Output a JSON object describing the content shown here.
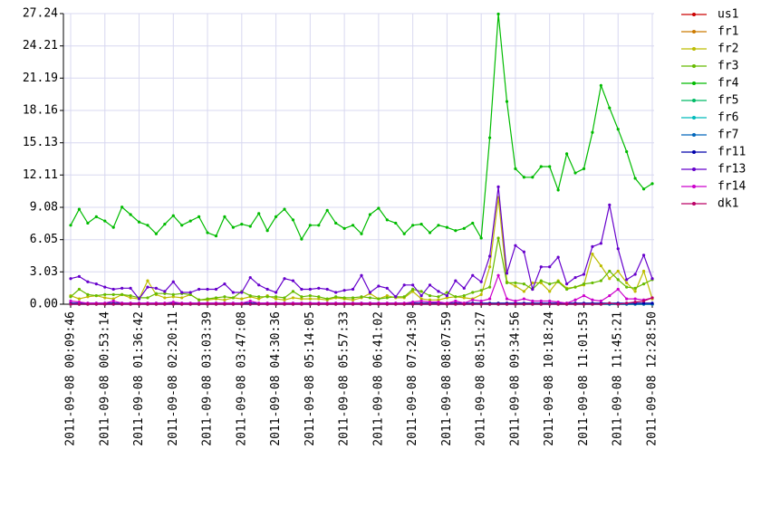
{
  "chart_data": {
    "type": "line",
    "categories": [
      "2011-09-08 00:09:46",
      null,
      null,
      null,
      "2011-09-08 00:53:14",
      null,
      null,
      null,
      "2011-09-08 01:36:42",
      null,
      null,
      null,
      "2011-09-08 02:20:11",
      null,
      null,
      null,
      "2011-09-08 03:03:39",
      null,
      null,
      null,
      "2011-09-08 03:47:08",
      null,
      null,
      null,
      "2011-09-08 04:30:36",
      null,
      null,
      null,
      "2011-09-08 05:14:05",
      null,
      null,
      null,
      "2011-09-08 05:57:33",
      null,
      null,
      null,
      "2011-09-08 06:41:02",
      null,
      null,
      null,
      "2011-09-08 07:24:30",
      null,
      null,
      null,
      "2011-09-08 08:07:59",
      null,
      null,
      null,
      "2011-09-08 08:51:27",
      null,
      null,
      null,
      "2011-09-08 09:34:56",
      null,
      null,
      null,
      "2011-09-08 10:18:24",
      null,
      null,
      null,
      "2011-09-08 11:01:53",
      null,
      null,
      null,
      "2011-09-08 11:45:21",
      null,
      null,
      null,
      "2011-09-08 12:28:50"
    ],
    "ylim": [
      0,
      27.24
    ],
    "yticks": [
      {
        "value": 0,
        "label": "0.00"
      },
      3.03,
      6.05,
      9.08,
      12.11,
      15.13,
      18.16,
      21.19,
      24.21,
      27.24
    ],
    "grid": true,
    "legend": "right",
    "series": [
      {
        "name": "us1",
        "color": "#cc0000",
        "values": [
          0,
          0,
          0,
          0,
          0,
          0,
          0,
          0,
          0,
          0,
          0,
          0,
          0,
          0,
          0,
          0,
          0,
          0,
          0,
          0,
          0,
          0,
          0,
          0,
          0,
          0,
          0,
          0,
          0,
          0,
          0,
          0,
          0,
          0,
          0,
          0,
          0,
          0,
          0,
          0,
          0,
          0,
          0,
          0,
          0,
          0,
          0,
          0,
          0,
          0,
          0,
          0,
          0,
          0,
          0,
          0,
          0,
          0,
          0,
          0,
          0,
          0,
          0,
          0,
          0,
          0,
          0,
          0,
          0
        ]
      },
      {
        "name": "fr1",
        "color": "#cc7a00",
        "values": [
          0,
          0,
          0,
          0,
          0,
          0,
          0,
          0,
          0,
          0,
          0,
          0,
          0,
          0,
          0,
          0,
          0,
          0,
          0,
          0,
          0,
          0,
          0,
          0,
          0,
          0,
          0,
          0,
          0,
          0,
          0,
          0,
          0,
          0,
          0,
          0,
          0,
          0,
          0,
          0,
          0,
          0,
          0,
          0,
          0,
          0,
          0,
          0,
          0,
          0,
          0,
          0,
          0,
          0,
          0,
          0,
          0,
          0,
          0,
          0,
          0,
          0,
          0,
          0,
          0,
          0,
          0,
          0,
          0
        ]
      },
      {
        "name": "fr2",
        "color": "#bdbd00",
        "values": [
          0.8,
          0.5,
          0.7,
          0.8,
          0.6,
          0.5,
          0.9,
          0.6,
          0.5,
          2.2,
          0.9,
          0.6,
          0.7,
          0.6,
          0.9,
          0.4,
          0.4,
          0.5,
          0.4,
          0.6,
          0.5,
          0.7,
          0.5,
          0.8,
          0.5,
          0.4,
          0.6,
          0.5,
          0.5,
          0.5,
          0.4,
          0.6,
          0.5,
          0.4,
          0.6,
          1.0,
          0.5,
          0.8,
          0.6,
          0.6,
          1.2,
          0.5,
          0.4,
          0.4,
          0.6,
          0.7,
          0.6,
          0.5,
          0.9,
          3.5,
          10.0,
          2.1,
          1.7,
          1.2,
          2.0,
          2.0,
          1.2,
          2.2,
          1.5,
          1.6,
          1.8,
          4.7,
          3.6,
          2.4,
          3.1,
          2.0,
          1.2,
          3.1,
          0.5
        ]
      },
      {
        "name": "fr3",
        "color": "#66bb00",
        "values": [
          0.7,
          1.4,
          0.9,
          0.8,
          0.9,
          0.9,
          0.9,
          0.8,
          0.6,
          0.6,
          1.0,
          1.0,
          0.9,
          1.0,
          0.9,
          0.4,
          0.5,
          0.6,
          0.7,
          0.6,
          1.2,
          0.8,
          0.7,
          0.7,
          0.7,
          0.6,
          1.2,
          0.7,
          0.8,
          0.7,
          0.5,
          0.7,
          0.6,
          0.6,
          0.7,
          0.6,
          0.5,
          0.6,
          0.7,
          0.7,
          1.4,
          1.2,
          0.8,
          0.7,
          1.1,
          0.7,
          0.8,
          1.1,
          1.3,
          1.6,
          6.2,
          2.0,
          2.0,
          1.9,
          1.4,
          2.2,
          1.9,
          2.1,
          1.4,
          1.6,
          1.9,
          2.0,
          2.2,
          3.1,
          2.3,
          1.6,
          1.5,
          1.9,
          2.3
        ]
      },
      {
        "name": "fr4",
        "color": "#00bb00",
        "values": [
          7.4,
          8.9,
          7.6,
          8.2,
          7.8,
          7.2,
          9.1,
          8.4,
          7.7,
          7.4,
          6.6,
          7.5,
          8.3,
          7.4,
          7.8,
          8.2,
          6.7,
          6.4,
          8.2,
          7.2,
          7.5,
          7.3,
          8.5,
          6.9,
          8.2,
          8.9,
          7.9,
          6.1,
          7.4,
          7.4,
          8.8,
          7.6,
          7.1,
          7.4,
          6.6,
          8.4,
          9.0,
          7.9,
          7.6,
          6.6,
          7.4,
          7.5,
          6.7,
          7.4,
          7.2,
          6.9,
          7.1,
          7.6,
          6.2,
          15.6,
          27.2,
          19.0,
          12.7,
          11.9,
          11.9,
          12.9,
          12.9,
          10.7,
          14.1,
          12.3,
          12.7,
          16.1,
          20.5,
          18.4,
          16.4,
          14.3,
          11.8,
          10.8,
          11.3
        ]
      },
      {
        "name": "fr5",
        "color": "#00bb66",
        "values": [
          0,
          0,
          0,
          0,
          0,
          0,
          0,
          0,
          0,
          0,
          0,
          0,
          0,
          0,
          0,
          0,
          0,
          0,
          0,
          0,
          0,
          0,
          0,
          0,
          0,
          0,
          0,
          0,
          0,
          0,
          0,
          0,
          0,
          0,
          0,
          0,
          0,
          0,
          0,
          0,
          0,
          0,
          0,
          0,
          0,
          0,
          0,
          0,
          0,
          0,
          0,
          0,
          0,
          0,
          0,
          0,
          0,
          0,
          0,
          0,
          0,
          0,
          0,
          0,
          0,
          0,
          0,
          0,
          0
        ]
      },
      {
        "name": "fr6",
        "color": "#00bbbb",
        "values": [
          0,
          0,
          0,
          0,
          0,
          0,
          0,
          0,
          0,
          0,
          0,
          0,
          0,
          0,
          0,
          0,
          0,
          0,
          0,
          0,
          0,
          0,
          0,
          0,
          0,
          0,
          0,
          0,
          0,
          0,
          0,
          0,
          0,
          0,
          0,
          0,
          0,
          0,
          0,
          0,
          0,
          0,
          0,
          0,
          0,
          0,
          0,
          0,
          0,
          0,
          0,
          0,
          0,
          0,
          0,
          0,
          0,
          0,
          0,
          0,
          0,
          0,
          0,
          0,
          0,
          0,
          0,
          0,
          0
        ]
      },
      {
        "name": "fr7",
        "color": "#0066bb",
        "values": [
          0,
          0,
          0,
          0,
          0,
          0,
          0,
          0,
          0,
          0,
          0,
          0,
          0,
          0,
          0,
          0,
          0,
          0,
          0,
          0,
          0,
          0,
          0,
          0,
          0,
          0,
          0,
          0,
          0,
          0,
          0,
          0,
          0,
          0,
          0,
          0,
          0,
          0,
          0,
          0,
          0,
          0,
          0,
          0,
          0,
          0,
          0,
          0,
          0,
          0,
          0,
          0,
          0,
          0,
          0,
          0,
          0,
          0,
          0,
          0,
          0,
          0,
          0,
          0,
          0,
          0,
          0,
          0,
          0
        ]
      },
      {
        "name": "fr11",
        "color": "#0000aa",
        "values": [
          0.1,
          0.1,
          0.1,
          0.1,
          0.1,
          0.1,
          0.1,
          0.1,
          0.1,
          0.1,
          0.1,
          0.1,
          0.1,
          0.1,
          0.1,
          0.1,
          0.1,
          0.1,
          0.1,
          0.1,
          0.1,
          0.1,
          0.1,
          0.1,
          0.1,
          0.1,
          0.1,
          0.1,
          0.1,
          0.1,
          0.1,
          0.1,
          0.1,
          0.1,
          0.1,
          0.1,
          0.1,
          0.1,
          0.1,
          0.1,
          0.1,
          0.1,
          0.1,
          0.1,
          0.1,
          0.1,
          0.1,
          0.1,
          0.1,
          0.1,
          0.1,
          0.1,
          0.1,
          0.1,
          0.1,
          0.1,
          0.1,
          0.1,
          0.1,
          0.1,
          0.1,
          0.1,
          0.1,
          0.1,
          0.1,
          0.1,
          0.1,
          0.1,
          0.1
        ]
      },
      {
        "name": "fr13",
        "color": "#6600cc",
        "values": [
          2.4,
          2.6,
          2.1,
          1.9,
          1.6,
          1.4,
          1.5,
          1.5,
          0.5,
          1.6,
          1.5,
          1.2,
          2.1,
          1.1,
          1.1,
          1.4,
          1.4,
          1.4,
          1.9,
          1.1,
          1.1,
          2.5,
          1.8,
          1.4,
          1.1,
          2.4,
          2.2,
          1.4,
          1.4,
          1.5,
          1.4,
          1.1,
          1.3,
          1.4,
          2.7,
          1.1,
          1.7,
          1.5,
          0.7,
          1.8,
          1.8,
          0.8,
          1.8,
          1.2,
          0.8,
          2.2,
          1.5,
          2.7,
          2.1,
          4.5,
          11.0,
          2.9,
          5.5,
          4.9,
          1.4,
          3.5,
          3.5,
          4.4,
          1.9,
          2.5,
          2.8,
          5.4,
          5.7,
          9.3,
          5.2,
          2.3,
          2.8,
          4.6,
          2.4
        ]
      },
      {
        "name": "fr14",
        "color": "#cc00cc",
        "values": [
          0.3,
          0.2,
          0.1,
          0.1,
          0.1,
          0.3,
          0.1,
          0.1,
          0.1,
          0.1,
          0.1,
          0.1,
          0.2,
          0.1,
          0.1,
          0.1,
          0.1,
          0.1,
          0.1,
          0.1,
          0.1,
          0.3,
          0.1,
          0.1,
          0.1,
          0.1,
          0.1,
          0.1,
          0.1,
          0.1,
          0.1,
          0.1,
          0.1,
          0.1,
          0.1,
          0.1,
          0.1,
          0.1,
          0.1,
          0.1,
          0.2,
          0.3,
          0.2,
          0.2,
          0.1,
          0.3,
          0.1,
          0.4,
          0.3,
          0.5,
          2.7,
          0.5,
          0.3,
          0.5,
          0.3,
          0.3,
          0.3,
          0.2,
          0.1,
          0.4,
          0.8,
          0.4,
          0.3,
          0.8,
          1.4,
          0.5,
          0.5,
          0.4,
          0.6
        ]
      },
      {
        "name": "dk1",
        "color": "#bb0066",
        "values": [
          0,
          0,
          0,
          0,
          0,
          0,
          0,
          0,
          0,
          0,
          0,
          0,
          0,
          0,
          0,
          0,
          0,
          0,
          0,
          0,
          0,
          0,
          0,
          0,
          0,
          0,
          0,
          0,
          0,
          0,
          0,
          0,
          0,
          0,
          0,
          0,
          0,
          0,
          0,
          0,
          0,
          0,
          0,
          0,
          0,
          0,
          0,
          0,
          0,
          0,
          0,
          0,
          0,
          0,
          0,
          0,
          0,
          0,
          0,
          0,
          0,
          0,
          0,
          0.1,
          0,
          0.1,
          0.2,
          0.3,
          0.6
        ]
      }
    ]
  }
}
